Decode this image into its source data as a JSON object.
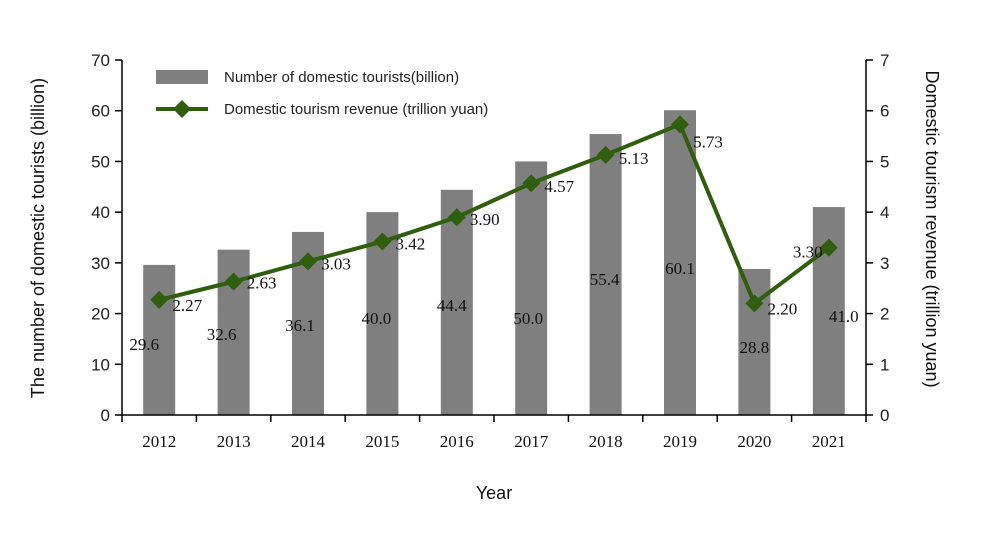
{
  "chart_data": {
    "type": "bar",
    "categories": [
      "2012",
      "2013",
      "2014",
      "2015",
      "2016",
      "2017",
      "2018",
      "2019",
      "2020",
      "2021"
    ],
    "series": [
      {
        "name": "Number of domestic tourists(billion)",
        "type": "bar",
        "axis": "left",
        "values": [
          29.6,
          32.6,
          36.1,
          40.0,
          44.4,
          50.0,
          55.4,
          60.1,
          28.8,
          41.0
        ],
        "labels": [
          "29.6",
          "32.6",
          "36.1",
          "40.0",
          "44.4",
          "50.0",
          "55.4",
          "60.1",
          "28.8",
          "41.0"
        ],
        "color": "#7f7f7f"
      },
      {
        "name": "Domestic tourism revenue (trillion yuan)",
        "type": "line",
        "marker": "diamond",
        "axis": "right",
        "values": [
          2.27,
          2.63,
          3.03,
          3.42,
          3.9,
          4.57,
          5.13,
          5.73,
          2.2,
          3.3
        ],
        "labels": [
          "2.27",
          "2.63",
          "3.03",
          "3.42",
          "3.90",
          "4.57",
          "5.13",
          "5.73",
          "2.20",
          "3.30"
        ],
        "color": "#2e5e0e"
      }
    ],
    "xlabel": "Year",
    "ylabel_left": "The number of domestic tourists (billion)",
    "ylabel_right": "Domestic tourism revenue (trillion yuan)",
    "ylim_left": [
      0,
      70
    ],
    "ylim_right": [
      0,
      7
    ],
    "yticks_left": [
      "0",
      "10",
      "20",
      "30",
      "40",
      "50",
      "60",
      "70"
    ],
    "yticks_right": [
      "0",
      "1",
      "2",
      "3",
      "4",
      "5",
      "6",
      "7"
    ],
    "grid": false,
    "legend_position": "top-left"
  }
}
